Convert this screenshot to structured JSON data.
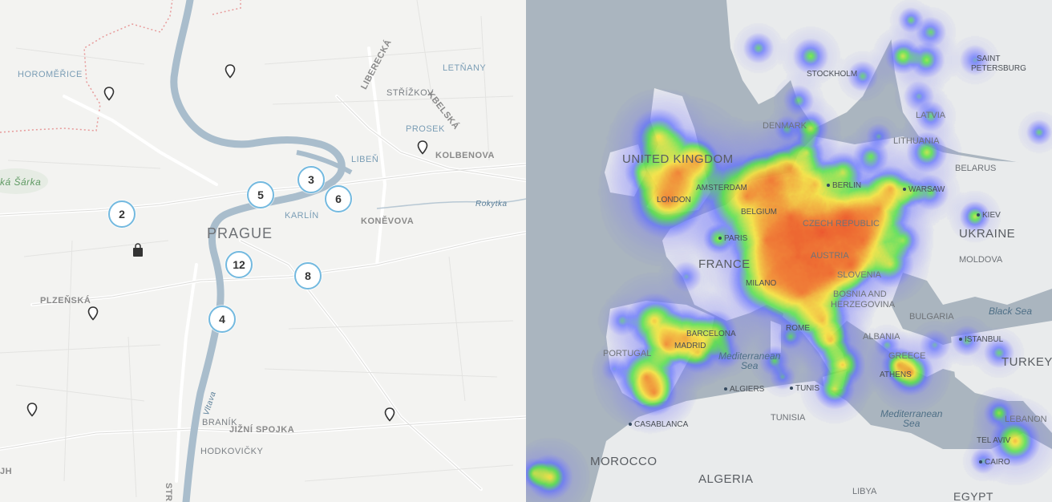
{
  "left_map": {
    "city_label": "PRAGUE",
    "districts": [
      "HOROMĚŘICE",
      "LETŇANY",
      "STŘÍŽKOV",
      "PROSEK",
      "LIBEŇ",
      "KARLÍN",
      "BRANÍK",
      "HODKOVIČKY"
    ],
    "streets": [
      "LIBERECKÁ",
      "KBELSKÁ",
      "KOLBENOVA",
      "KONĚVOVA",
      "PLZEŇSKÁ",
      "JIŽNÍ SPOJKA",
      "STRA"
    ],
    "parks": [
      "ká Šárka"
    ],
    "rivers": [
      "Rokytka",
      "Vltava"
    ],
    "partial_labels": [
      "JH"
    ],
    "clusters": [
      "3",
      "5",
      "6",
      "2",
      "12",
      "8",
      "4"
    ],
    "pins_count": 6,
    "colors": {
      "cluster_border": "#73b9df",
      "river": "#a9bdcc",
      "background": "#f3f3f1"
    }
  },
  "right_map": {
    "countries": [
      "UNITED KINGDOM",
      "FRANCE",
      "UKRAINE",
      "TURKEY",
      "MOROCCO",
      "ALGERIA",
      "BELARUS",
      "MOLDOVA",
      "BULGARIA",
      "ALBANIA",
      "GREECE",
      "DENMARK",
      "LATVIA",
      "LITHUANIA",
      "CZECH REPUBLIC",
      "AUSTRIA",
      "SLOVENIA",
      "BOSNIA AND",
      "HERZEGOVINA",
      "TUNISIA",
      "LEBANON",
      "LIBYA",
      "EGYPT",
      "PORTUGAL"
    ],
    "cities": [
      "STOCKHOLM",
      "SAINT",
      "PETERSBURG",
      "BERLIN",
      "AMSTERDAM",
      "LONDON",
      "PARIS",
      "BELGIUM",
      "WARSAW",
      "KIEV",
      "MILANO",
      "ROME",
      "BARCELONA",
      "MADRID",
      "ISTANBUL",
      "ATHENS",
      "ALGIERS",
      "TUNIS",
      "CASABLANCA",
      "TEL AVIV",
      "CAIRO"
    ],
    "seas": [
      "Black Sea",
      "Mediterranean",
      "Sea",
      "Mediterranean",
      "Sea"
    ],
    "colors": {
      "sea": "#aab5bf",
      "land": "#e9ebec",
      "heat_low": "#6e6cff",
      "heat_mid": "#52e04a",
      "heat_high": "#f5e23c",
      "heat_max": "#e8321e"
    }
  }
}
